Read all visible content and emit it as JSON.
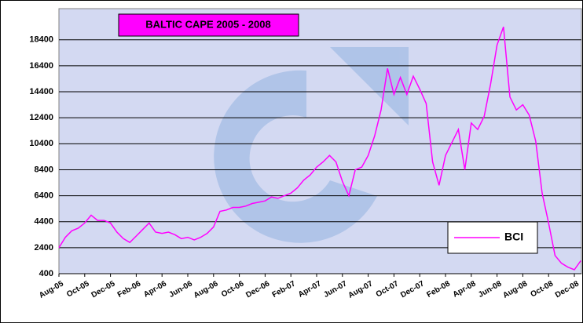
{
  "chart_data": {
    "type": "line",
    "title": "BALTIC CAPE 2005 - 2008",
    "categories": [
      "Aug-05",
      null,
      null,
      null,
      "Oct-05",
      null,
      null,
      null,
      "Dec-05",
      null,
      null,
      null,
      "Feb-06",
      null,
      null,
      null,
      "Apr-06",
      null,
      null,
      null,
      "Jun-06",
      null,
      null,
      null,
      "Aug-06",
      null,
      null,
      null,
      "Oct-06",
      null,
      null,
      null,
      "Dec-06",
      null,
      null,
      null,
      "Feb-07",
      null,
      null,
      null,
      "Apr-07",
      null,
      null,
      null,
      "Jun-07",
      null,
      null,
      null,
      "Aug-07",
      null,
      null,
      null,
      "Oct-07",
      null,
      null,
      null,
      "Dec-07",
      null,
      null,
      null,
      "Feb-08",
      null,
      null,
      null,
      "Apr-08",
      null,
      null,
      null,
      "Jun-08",
      null,
      null,
      null,
      "Aug-08",
      null,
      null,
      null,
      "Oct-08",
      null,
      null,
      null,
      "Dec-08",
      null
    ],
    "series": [
      {
        "name": "BCI",
        "color": "#ff00ff",
        "values": [
          2400,
          3200,
          3700,
          3900,
          4300,
          4900,
          4500,
          4500,
          4300,
          3600,
          3100,
          2800,
          3300,
          3800,
          4300,
          3600,
          3500,
          3600,
          3400,
          3100,
          3200,
          3000,
          3200,
          3500,
          4000,
          5200,
          5300,
          5500,
          5500,
          5600,
          5800,
          5900,
          6000,
          6300,
          6200,
          6400,
          6600,
          7000,
          7600,
          8000,
          8600,
          9000,
          9500,
          9000,
          7500,
          6400,
          8400,
          8600,
          9500,
          11000,
          13000,
          16200,
          14200,
          15500,
          14200,
          15600,
          14600,
          13500,
          9000,
          7200,
          9500,
          10500,
          11500,
          8400,
          12000,
          11500,
          12500,
          15000,
          18000,
          19400,
          14000,
          13000,
          13400,
          12600,
          10600,
          6600,
          4300,
          1800,
          1200,
          900,
          700,
          1400
        ]
      }
    ],
    "ylim": [
      400,
      20800
    ],
    "yticks": [
      400,
      2400,
      4400,
      6400,
      8400,
      10400,
      12400,
      14400,
      16400,
      18400
    ],
    "grid": true,
    "legend": "lower right"
  }
}
